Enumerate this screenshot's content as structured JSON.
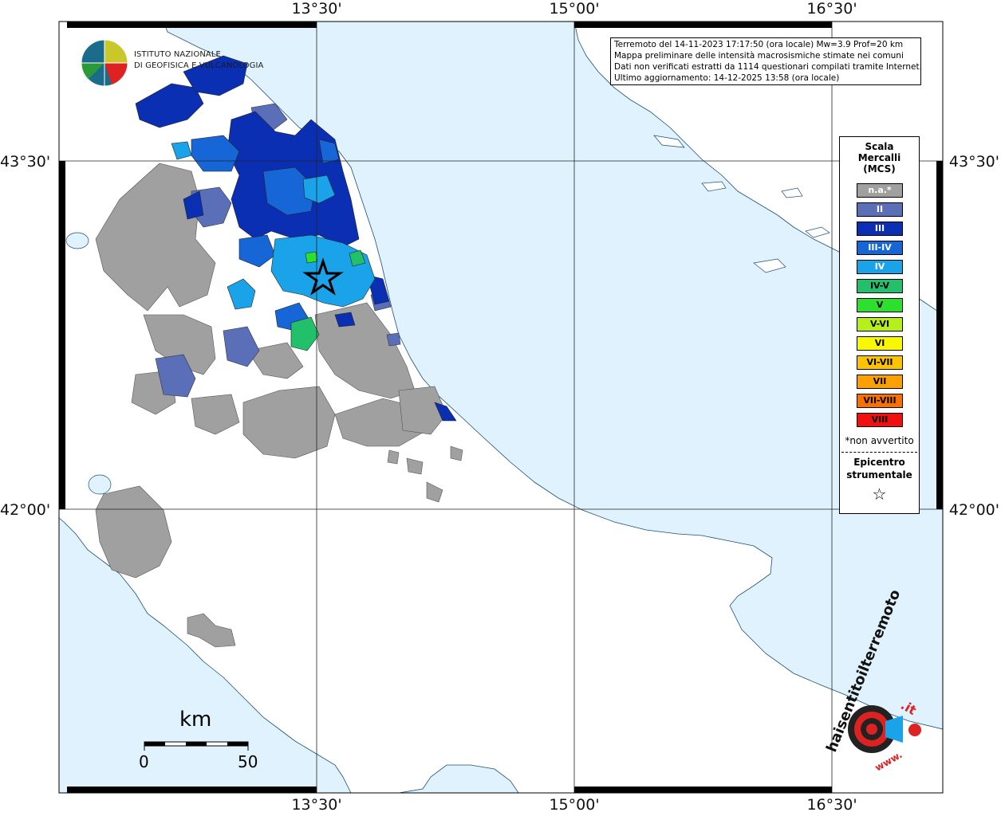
{
  "map": {
    "coords_top": [
      "13°30'",
      "15°00'",
      "16°30'"
    ],
    "coords_bottom": [
      "13°30'",
      "15°00'",
      "16°30'"
    ],
    "coords_left": [
      "43°30'",
      "42°00'"
    ],
    "coords_right": [
      "43°30'",
      "42°00'"
    ],
    "colors": {
      "sea": "#dff2fd",
      "land": "#ffffff",
      "na": "#a0a0a0",
      "II": "#5a6fb8",
      "III": "#0b2fb3",
      "III-IV": "#1666d8",
      "IV": "#1aa3e8",
      "IV-V": "#22c06a",
      "V": "#2ee02e"
    }
  },
  "info": {
    "line1": "Terremoto del 14-11-2023 17:17:50 (ora locale) Mw=3.9 Prof=20 km",
    "line2": "Mappa preliminare delle intensità macrosismiche stimate nei comuni",
    "line3": "Dati non verificati estratti da 1114 questionari compilati tramite Internet.",
    "line4": "Ultimo aggiornamento: 14-12-2025 13:58 (ora locale)"
  },
  "legend": {
    "title1": "Scala",
    "title2": "Mercalli",
    "title3": "(MCS)",
    "items": [
      {
        "label": "n.a.*",
        "color": "#a0a0a0",
        "text": "#ffffff"
      },
      {
        "label": "II",
        "color": "#5a6fb8",
        "text": "#ffffff"
      },
      {
        "label": "III",
        "color": "#0b2fb3",
        "text": "#ffffff"
      },
      {
        "label": "III-IV",
        "color": "#1666d8",
        "text": "#ffffff"
      },
      {
        "label": "IV",
        "color": "#1aa3e8",
        "text": "#ffffff"
      },
      {
        "label": "IV-V",
        "color": "#22c06a",
        "text": "#000000"
      },
      {
        "label": "V",
        "color": "#2ee02e",
        "text": "#000000"
      },
      {
        "label": "V-VI",
        "color": "#b6f01a",
        "text": "#000000"
      },
      {
        "label": "VI",
        "color": "#f8f800",
        "text": "#000000"
      },
      {
        "label": "VI-VII",
        "color": "#fcc400",
        "text": "#000000"
      },
      {
        "label": "VII",
        "color": "#fca000",
        "text": "#000000"
      },
      {
        "label": "VII-VIII",
        "color": "#f87000",
        "text": "#000000"
      },
      {
        "label": "VIII",
        "color": "#f01010",
        "text": "#000000"
      }
    ],
    "note": "*non avvertito",
    "epi1": "Epicentro",
    "epi2": "strumentale",
    "star": "☆"
  },
  "logo": {
    "line1": "ISTITUTO NAZIONALE",
    "line2": "DI GEOFISICA E VULCANOLOGIA"
  },
  "scale": {
    "unit": "km",
    "zero": "0",
    "fifty": "50"
  },
  "badge": {
    "text_main": "haisentitoilterremoto",
    "text_it": ".it",
    "text_www": "www."
  }
}
